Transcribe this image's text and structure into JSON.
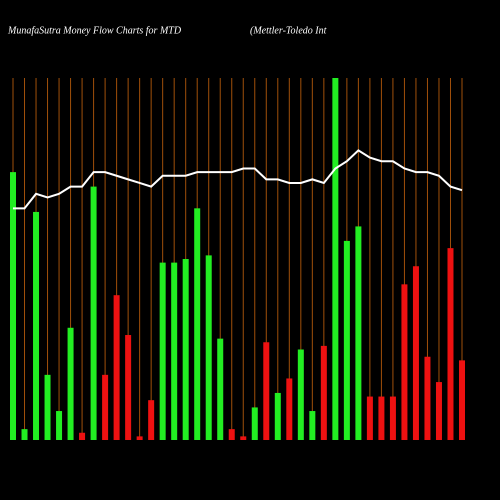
{
  "chart_data": {
    "type": "bar",
    "title": "MunafaSutra  Money Flow  Charts for MTD",
    "subtitle": "(Mettler-Toledo  Int",
    "categories": [
      null,
      null,
      null,
      null,
      null,
      null,
      null,
      null,
      null,
      null,
      null,
      null,
      null,
      null,
      null,
      null,
      null,
      null,
      null,
      null,
      null,
      null,
      null,
      null,
      null,
      null,
      null,
      null,
      null,
      null,
      null,
      null,
      null,
      null,
      null,
      null,
      null,
      null,
      null,
      null
    ],
    "values": [
      74,
      3,
      63,
      18,
      8,
      31,
      2,
      70,
      18,
      40,
      29,
      1,
      11,
      49,
      49,
      50,
      64,
      51,
      28,
      3,
      1,
      9,
      27,
      13,
      17,
      25,
      8,
      26,
      100,
      55,
      59,
      12,
      12,
      12,
      43,
      48,
      23,
      16,
      53,
      22
    ],
    "colors": [
      "#22ee22",
      "#22ee22",
      "#22ee22",
      "#22ee22",
      "#22ee22",
      "#22ee22",
      "#ee1111",
      "#22ee22",
      "#ee1111",
      "#ee1111",
      "#ee1111",
      "#ee1111",
      "#ee1111",
      "#22ee22",
      "#22ee22",
      "#22ee22",
      "#22ee22",
      "#22ee22",
      "#22ee22",
      "#ee1111",
      "#ee1111",
      "#22ee22",
      "#ee1111",
      "#22ee22",
      "#ee1111",
      "#22ee22",
      "#22ee22",
      "#ee1111",
      "#22ee22",
      "#22ee22",
      "#22ee22",
      "#ee1111",
      "#ee1111",
      "#ee1111",
      "#ee1111",
      "#ee1111",
      "#ee1111",
      "#ee1111",
      "#ee1111",
      "#ee1111"
    ],
    "line": {
      "color": "#ffffff",
      "values": [
        64,
        64,
        68,
        67,
        68,
        70,
        70,
        74,
        74,
        73,
        72,
        71,
        70,
        73,
        73,
        73,
        74,
        74,
        74,
        74,
        75,
        75,
        72,
        72,
        71,
        71,
        72,
        71,
        75,
        77,
        80,
        78,
        77,
        77,
        75,
        74,
        74,
        73,
        70,
        69
      ]
    },
    "ylim": [
      0,
      100
    ],
    "grid_color": "#a0500a"
  }
}
